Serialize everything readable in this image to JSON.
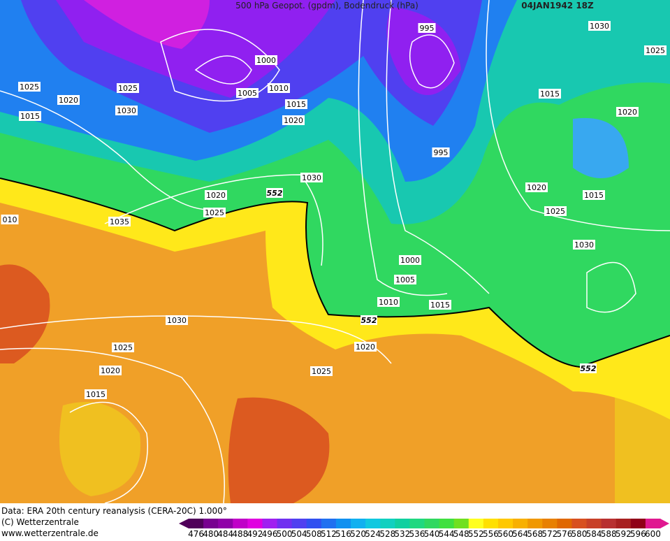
{
  "header": {
    "title": "500 hPa Geopot. (gpdm), Bodendruck (hPa)",
    "date": "04JAN1942 18Z"
  },
  "map": {
    "isobar_labels": [
      "1000",
      "1005",
      "1010",
      "1015",
      "1020",
      "1025",
      "1025",
      "1020",
      "1015",
      "1030",
      "995",
      "995",
      "1030",
      "1025",
      "1015",
      "1020",
      "1020",
      "1015",
      "1025",
      "1030",
      "1030",
      "1020",
      "1025",
      "1035",
      "010",
      "1000",
      "1005",
      "1010",
      "1015",
      "1020",
      "1025",
      "1030",
      "1025",
      "1020",
      "1015"
    ],
    "geopotential_labels": [
      "552",
      "552",
      "552"
    ]
  },
  "footer": {
    "source": "Data: ERA 20th century reanalysis (CERA-20C) 1.000°",
    "copyright": "(C) Wetterzentrale",
    "url": "www.wetterzentrale.de"
  },
  "legend": {
    "labels": [
      476,
      480,
      484,
      488,
      492,
      496,
      500,
      504,
      508,
      512,
      516,
      520,
      524,
      528,
      532,
      536,
      540,
      544,
      548,
      552,
      556,
      560,
      564,
      568,
      572,
      576,
      580,
      584,
      588,
      592,
      596,
      600
    ]
  }
}
